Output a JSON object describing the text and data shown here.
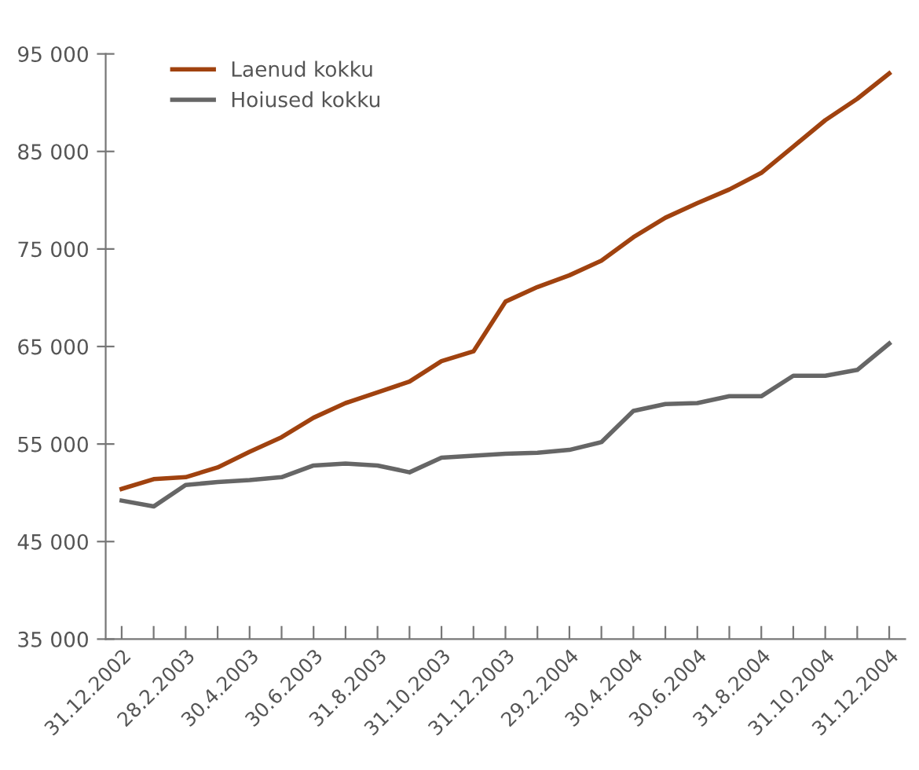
{
  "chart_data": {
    "type": "line",
    "categories": [
      "31.12.2002",
      null,
      "28.2.2003",
      null,
      "30.4.2003",
      null,
      "30.6.2003",
      null,
      "31.8.2003",
      null,
      "31.10.2003",
      null,
      "31.12.2003",
      null,
      "29.2.2004",
      null,
      "30.4.2004",
      null,
      "30.6.2004",
      null,
      "31.8.2004",
      null,
      "31.10.2004",
      null,
      "31.12.2004"
    ],
    "series": [
      {
        "name": "Laenud kokku",
        "color": "#a0420f",
        "values": [
          50400,
          51400,
          51600,
          52600,
          54200,
          55700,
          57700,
          59200,
          60300,
          61400,
          63500,
          64500,
          69600,
          71100,
          72300,
          73800,
          76200,
          78200,
          79700,
          81100,
          82800,
          85500,
          88200,
          90400,
          93000
        ]
      },
      {
        "name": "Hoiused kokku",
        "color": "#666666",
        "values": [
          49200,
          48600,
          50800,
          51100,
          51300,
          51600,
          52800,
          53000,
          52800,
          52100,
          53600,
          53800,
          54000,
          54100,
          54400,
          55200,
          58400,
          59100,
          59200,
          59900,
          59900,
          62000,
          62000,
          62600,
          65300
        ]
      }
    ],
    "ylim": [
      35000,
      95000
    ],
    "yticks": [
      {
        "value": 35000,
        "label": "35 000"
      },
      {
        "value": 45000,
        "label": "45 000"
      },
      {
        "value": 55000,
        "label": "55 000"
      },
      {
        "value": 65000,
        "label": "65 000"
      },
      {
        "value": 75000,
        "label": "75 000"
      },
      {
        "value": 85000,
        "label": "85 000"
      },
      {
        "value": 95000,
        "label": "95 000"
      }
    ],
    "legend": "top left",
    "grid": false,
    "marker": "none",
    "line_style": "solid"
  }
}
